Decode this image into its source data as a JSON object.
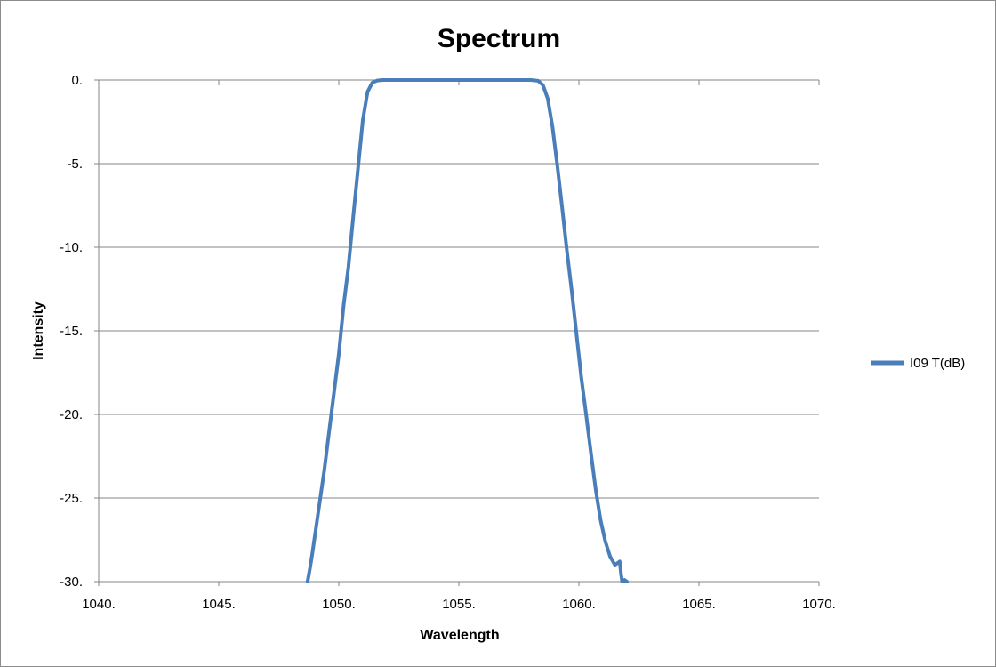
{
  "chart_data": {
    "type": "line",
    "title": "Spectrum",
    "xlabel": "Wavelength",
    "ylabel": "Intensity",
    "xlim": [
      1040,
      1070
    ],
    "ylim": [
      -30,
      0
    ],
    "x_ticks": [
      1040,
      1045,
      1050,
      1055,
      1060,
      1065,
      1070
    ],
    "x_tick_labels": [
      "1040.",
      "1045.",
      "1050.",
      "1055.",
      "1060.",
      "1065.",
      "1070."
    ],
    "y_ticks": [
      0,
      -5,
      -10,
      -15,
      -20,
      -25,
      -30
    ],
    "y_tick_labels": [
      "0.",
      "-5.",
      "-10.",
      "-15.",
      "-20.",
      "-25.",
      "-30."
    ],
    "grid": "horizontal",
    "legend_position": "right",
    "series": [
      {
        "name": "I09 T(dB)",
        "color": "#4a7ebb",
        "x": [
          1048.7,
          1048.8,
          1048.9,
          1049.0,
          1049.2,
          1049.4,
          1049.6,
          1049.8,
          1050.0,
          1050.2,
          1050.4,
          1050.6,
          1050.8,
          1051.0,
          1051.2,
          1051.4,
          1051.6,
          1051.8,
          1052.0,
          1052.2,
          1053.0,
          1055.0,
          1057.0,
          1058.0,
          1058.3,
          1058.5,
          1058.7,
          1058.9,
          1059.1,
          1059.3,
          1059.5,
          1059.7,
          1059.9,
          1060.1,
          1060.3,
          1060.5,
          1060.7,
          1060.9,
          1061.1,
          1061.3,
          1061.5,
          1061.7,
          1061.75,
          1061.8,
          1061.9,
          1062.0
        ],
        "y": [
          -30.0,
          -29.2,
          -28.3,
          -27.3,
          -25.3,
          -23.3,
          -21.0,
          -18.7,
          -16.4,
          -13.5,
          -11.2,
          -8.2,
          -5.3,
          -2.4,
          -0.7,
          -0.15,
          -0.03,
          0.0,
          0.0,
          0.0,
          0.0,
          0.0,
          0.0,
          0.0,
          -0.05,
          -0.3,
          -1.1,
          -2.8,
          -5.1,
          -7.6,
          -10.2,
          -12.6,
          -15.2,
          -17.8,
          -20.0,
          -22.3,
          -24.5,
          -26.3,
          -27.6,
          -28.5,
          -29.0,
          -28.8,
          -29.5,
          -30.0,
          -29.9,
          -30.0
        ]
      }
    ]
  }
}
